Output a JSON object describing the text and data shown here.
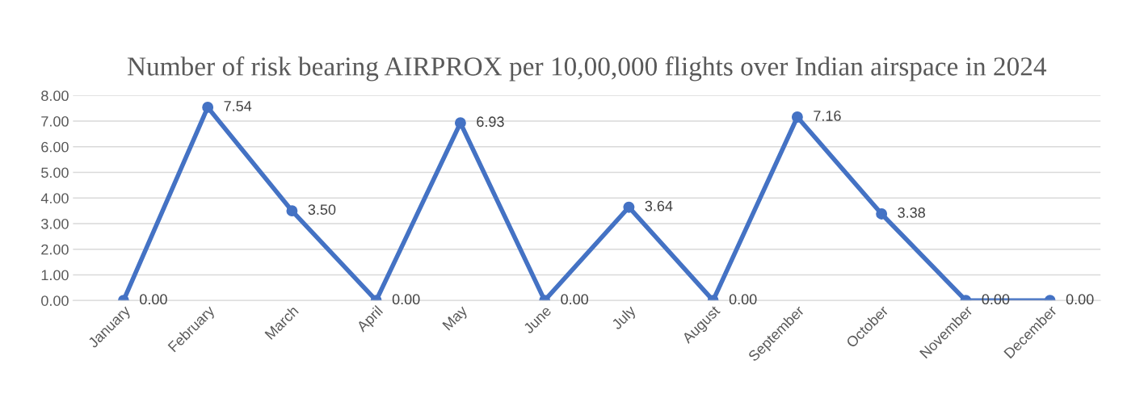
{
  "chart_data": {
    "type": "line",
    "title": "Number of risk bearing AIRPROX per 10,00,000 flights over Indian airspace in 2024",
    "categories": [
      "January",
      "February",
      "March",
      "April",
      "May",
      "June",
      "July",
      "August",
      "September",
      "October",
      "November",
      "December"
    ],
    "series": [
      {
        "color": "#4472c4",
        "values": [
          0,
          7.54,
          3.5,
          0,
          6.93,
          0,
          3.64,
          0,
          7.16,
          3.38,
          0,
          0
        ],
        "value_labels": [
          "0.00",
          "7.54",
          "3.50",
          "0.00",
          "6.93",
          "0.00",
          "3.64",
          "0.00",
          "7.16",
          "3.38",
          "0.00",
          "0.00"
        ]
      }
    ],
    "ylim": [
      0,
      8
    ],
    "yticks": [
      {
        "value": 0,
        "label": "0.00"
      },
      {
        "value": 1,
        "label": "1.00"
      },
      {
        "value": 2,
        "label": "2.00"
      },
      {
        "value": 3,
        "label": "3.00"
      },
      {
        "value": 4,
        "label": "4.00"
      },
      {
        "value": 5,
        "label": "5.00"
      },
      {
        "value": 6,
        "label": "6.00"
      },
      {
        "value": 7,
        "label": "7.00"
      },
      {
        "value": 8,
        "label": "8.00"
      }
    ],
    "grid": "y",
    "marker": "circle",
    "line_style": "solid",
    "legend": false
  }
}
